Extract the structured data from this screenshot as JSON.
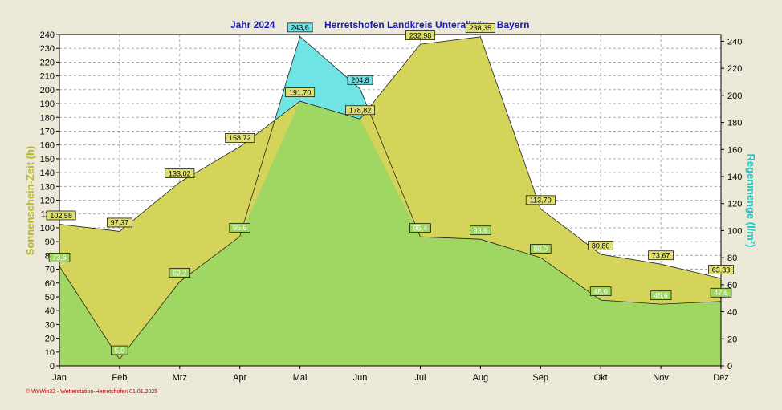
{
  "chart_data": {
    "type": "area",
    "title_year": "Jahr  2024",
    "title_place": "Herretshofen Landkreis Unterallgäu - Bayern",
    "ylabel_left": "Sonnenschein-Zeit  (h)",
    "ylabel_right": "Regenmenge  (l/m²)",
    "categories": [
      "Jan",
      "Feb",
      "Mrz",
      "Apr",
      "Mai",
      "Jun",
      "Jul",
      "Aug",
      "Sep",
      "Okt",
      "Nov",
      "Dez"
    ],
    "ylim_left": [
      0,
      240
    ],
    "ylim_right": [
      0,
      245
    ],
    "yticks_left": [
      "0",
      "10",
      "20",
      "30",
      "40",
      "50",
      "60",
      "70",
      "80",
      "90",
      "100",
      "110",
      "120",
      "130",
      "140",
      "150",
      "160",
      "170",
      "180",
      "190",
      "200",
      "210",
      "220",
      "230",
      "240"
    ],
    "yticks_right": [
      "0",
      "20",
      "40",
      "60",
      "80",
      "100",
      "120",
      "140",
      "160",
      "180",
      "200",
      "220",
      "240"
    ],
    "grid": true,
    "series": [
      {
        "axis": "left",
        "color": "#d4d45a",
        "values": [
          102.58,
          97.37,
          133.02,
          158.72,
          191.7,
          178.82,
          232.98,
          238.35,
          113.7,
          80.8,
          73.67,
          63.33
        ],
        "labels": [
          "102,58",
          "97,37",
          "133,02",
          "158,72",
          "191,70",
          "178,82",
          "232,98",
          "238,35",
          "113,70",
          "80,80",
          "73,67",
          "63,33"
        ]
      },
      {
        "axis": "right",
        "color": "#70e4e4",
        "values": [
          73.6,
          5.0,
          62.2,
          95.6,
          243.6,
          204.8,
          95.4,
          93.6,
          80.0,
          48.6,
          45.6,
          47.6
        ],
        "labels": [
          "73,6",
          "5,0",
          "62,2",
          "95,6",
          "243,6",
          "204,8",
          "95,4",
          "93,6",
          "80,0",
          "48,6",
          "45,6",
          "47,6"
        ]
      }
    ],
    "footer": "© WsWin32  -  Wetterstation-Herretshofen  01.01.2025"
  }
}
